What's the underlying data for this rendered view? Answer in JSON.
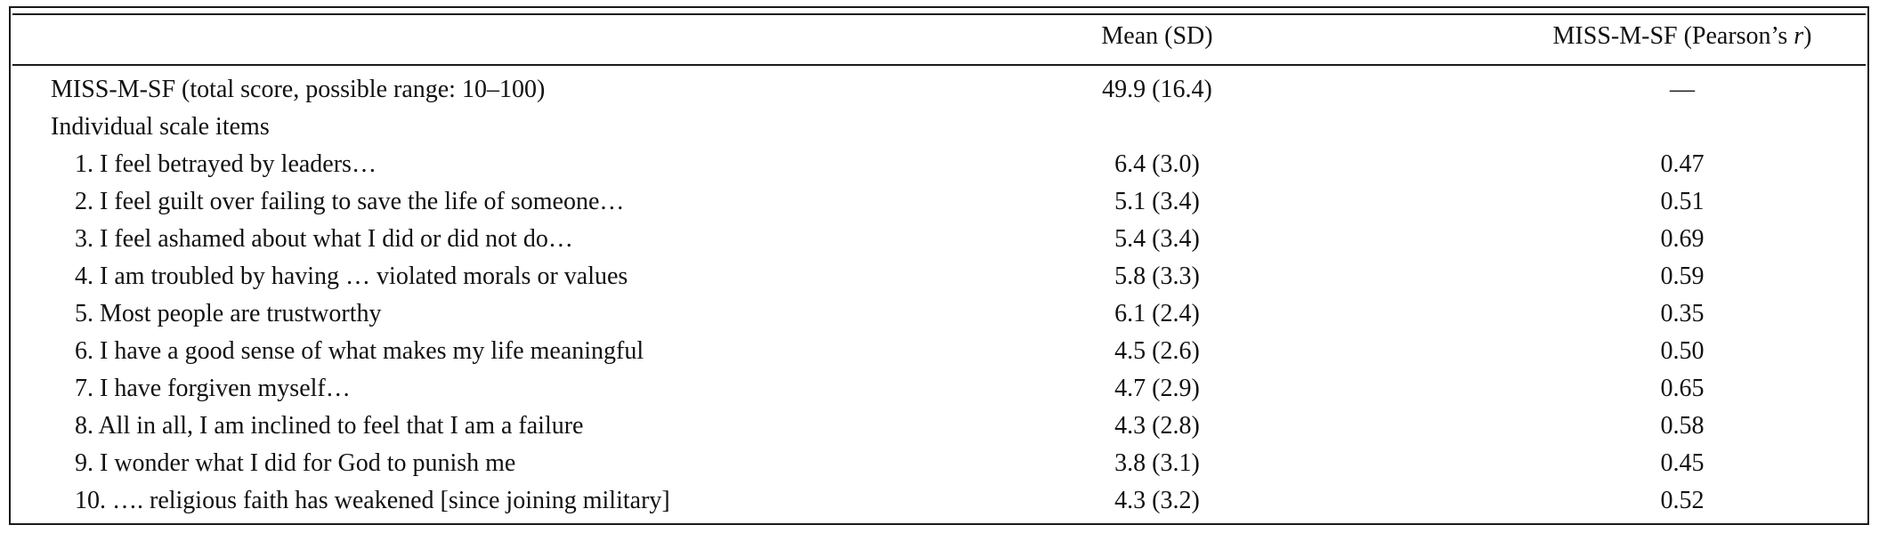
{
  "table": {
    "header": {
      "col_mean": "Mean (SD)",
      "col_r_prefix": "MISS-M-SF (Pearson’s ",
      "col_r_symbol": "r",
      "col_r_suffix": ")"
    },
    "total": {
      "label": "MISS-M-SF (total score, possible range: 10–100)",
      "mean": "49.9 (16.4)",
      "r": "—"
    },
    "section_label": "Individual scale items",
    "items": [
      {
        "label": "1. I feel betrayed by leaders…",
        "mean": "6.4 (3.0)",
        "r": "0.47"
      },
      {
        "label": "2. I feel guilt over failing to save the life of someone…",
        "mean": "5.1 (3.4)",
        "r": "0.51"
      },
      {
        "label": "3. I feel ashamed about what I did or did not do…",
        "mean": "5.4 (3.4)",
        "r": "0.69"
      },
      {
        "label": "4. I am troubled by having … violated morals or values",
        "mean": "5.8 (3.3)",
        "r": "0.59"
      },
      {
        "label": "5. Most people are trustworthy",
        "mean": "6.1 (2.4)",
        "r": "0.35"
      },
      {
        "label": "6. I have a good sense of what makes my life meaningful",
        "mean": "4.5 (2.6)",
        "r": "0.50"
      },
      {
        "label": "7. I have forgiven myself…",
        "mean": "4.7 (2.9)",
        "r": "0.65"
      },
      {
        "label": "8. All in all, I am inclined to feel that I am a failure",
        "mean": "4.3 (2.8)",
        "r": "0.58"
      },
      {
        "label": "9. I wonder what I did for God to punish me",
        "mean": "3.8 (3.1)",
        "r": "0.45"
      },
      {
        "label": "10. …. religious faith has weakened [since joining military]",
        "mean": "4.3 (3.2)",
        "r": "0.52"
      }
    ]
  }
}
